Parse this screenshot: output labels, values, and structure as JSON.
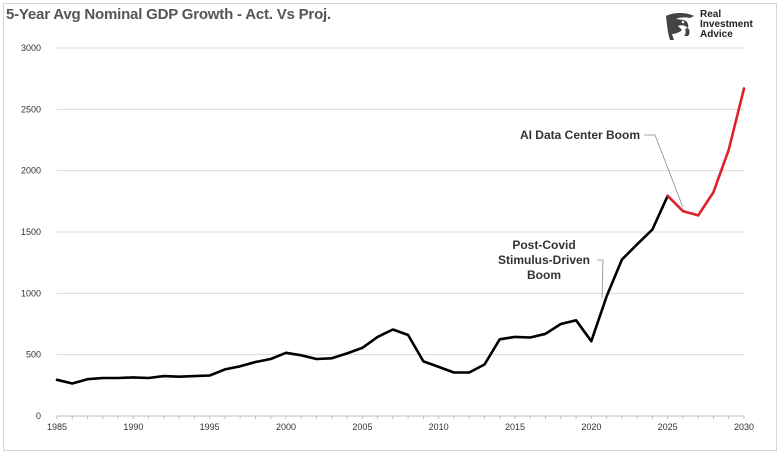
{
  "title": "5-Year Avg Nominal GDP Growth - Act. Vs Proj.",
  "logo": {
    "lines": [
      "Real",
      "Investment",
      "Advice"
    ],
    "icon": "eagle-head-icon"
  },
  "colors": {
    "actual": "#000000",
    "projected": "#e0202a",
    "grid": "#d9d9d9",
    "annotation_leader": "#888888"
  },
  "chart_data": {
    "type": "line",
    "title": "5-Year Avg Nominal GDP Growth - Act. Vs Proj.",
    "xlabel": "",
    "ylabel": "",
    "xlim": [
      1985,
      2030
    ],
    "ylim": [
      0,
      3000
    ],
    "x_ticks": [
      "1985",
      "1990",
      "1995",
      "2000",
      "2005",
      "2010",
      "2015",
      "2020",
      "2025",
      "2030"
    ],
    "y_ticks": [
      "0",
      "500",
      "1000",
      "1500",
      "2000",
      "2500",
      "3000"
    ],
    "grid": "horizontal",
    "series": [
      {
        "role": "actual",
        "color": "#000000",
        "x": [
          1985,
          1986,
          1987,
          1988,
          1989,
          1990,
          1991,
          1992,
          1993,
          1994,
          1995,
          1996,
          1997,
          1998,
          1999,
          2000,
          2001,
          2002,
          2003,
          2004,
          2005,
          2006,
          2007,
          2008,
          2009,
          2010,
          2011,
          2012,
          2013,
          2014,
          2015,
          2016,
          2017,
          2018,
          2019,
          2020,
          2021,
          2022,
          2023,
          2024,
          2025
        ],
        "values": [
          295,
          265,
          300,
          310,
          310,
          315,
          310,
          325,
          320,
          325,
          330,
          380,
          405,
          440,
          465,
          515,
          495,
          465,
          470,
          510,
          555,
          645,
          705,
          660,
          445,
          400,
          355,
          355,
          420,
          625,
          645,
          640,
          670,
          750,
          780,
          610,
          975,
          1275,
          1400,
          1520,
          1795
        ]
      },
      {
        "role": "projected",
        "color": "#e0202a",
        "x": [
          2025,
          2026,
          2027,
          2028,
          2029,
          2030
        ],
        "values": [
          1795,
          1670,
          1635,
          1825,
          2170,
          2670
        ]
      }
    ],
    "annotations": [
      {
        "text": "AI Data Center Boom",
        "x": 2026,
        "y": 1670
      },
      {
        "lines": [
          "Post-Covid",
          "Stimulus-Driven",
          "Boom"
        ],
        "x": 2020.7,
        "y": 960
      }
    ]
  }
}
